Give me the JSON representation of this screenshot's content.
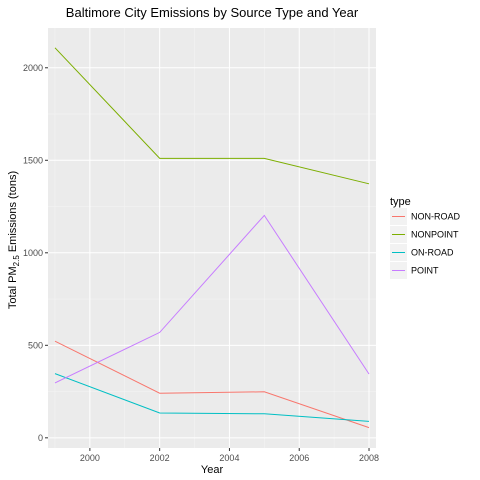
{
  "chart_data": {
    "type": "line",
    "title": "Baltimore City Emissions by Source Type and Year",
    "xlabel": "Year",
    "ylabel": {
      "prefix": "Total PM",
      "subscript": "2.5",
      "suffix": " Emissions (tons)"
    },
    "x": [
      1999,
      2002,
      2005,
      2008
    ],
    "xlim": [
      1998.8,
      2008.2
    ],
    "ylim": [
      -55,
      2215
    ],
    "x_ticks": [
      2000,
      2002,
      2004,
      2006,
      2008
    ],
    "x_tick_labels": [
      "2000",
      "2002",
      "2004",
      "2006",
      "2008"
    ],
    "y_ticks": [
      0,
      500,
      1000,
      1500,
      2000
    ],
    "y_tick_labels": [
      "0",
      "500",
      "1000",
      "1500",
      "2000"
    ],
    "grid": true,
    "background": "#ebebeb",
    "legend": {
      "title": "type",
      "position": "right"
    },
    "series": [
      {
        "name": "NON-ROAD",
        "color": "#f8766d",
        "values": [
          522,
          241,
          249,
          55
        ]
      },
      {
        "name": "NONPOINT",
        "color": "#7cae00",
        "values": [
          2108,
          1510,
          1510,
          1373
        ]
      },
      {
        "name": "ON-ROAD",
        "color": "#00bfc4",
        "values": [
          347,
          134,
          130,
          89
        ]
      },
      {
        "name": "POINT",
        "color": "#c77cff",
        "values": [
          297,
          570,
          1202,
          345
        ]
      }
    ]
  }
}
